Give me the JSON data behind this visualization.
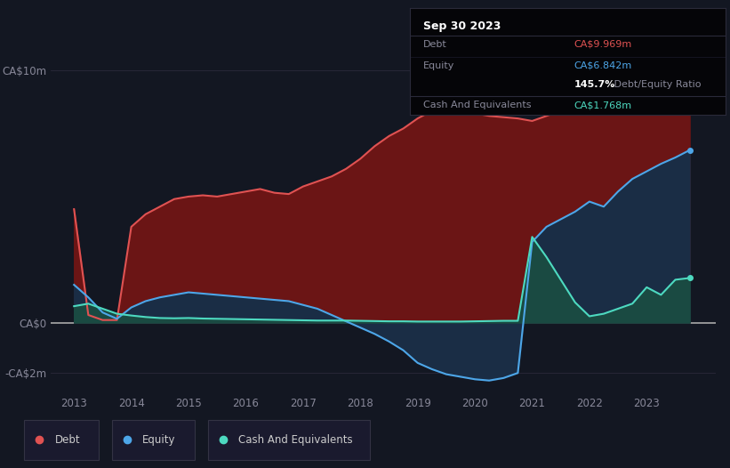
{
  "background_color": "#131722",
  "plot_bg_color": "#131722",
  "tooltip": {
    "date": "Sep 30 2023",
    "debt_label": "Debt",
    "debt_value": "CA$9.969m",
    "equity_label": "Equity",
    "equity_value": "CA$6.842m",
    "ratio_bold": "145.7%",
    "ratio_rest": " Debt/Equity Ratio",
    "cash_label": "Cash And Equivalents",
    "cash_value": "CA$1.768m"
  },
  "years": [
    2013.0,
    2013.25,
    2013.5,
    2013.75,
    2014.0,
    2014.25,
    2014.5,
    2014.75,
    2015.0,
    2015.25,
    2015.5,
    2015.75,
    2016.0,
    2016.25,
    2016.5,
    2016.75,
    2017.0,
    2017.25,
    2017.5,
    2017.75,
    2018.0,
    2018.25,
    2018.5,
    2018.75,
    2019.0,
    2019.25,
    2019.5,
    2019.75,
    2020.0,
    2020.25,
    2020.5,
    2020.75,
    2021.0,
    2021.25,
    2021.5,
    2021.75,
    2022.0,
    2022.25,
    2022.5,
    2022.75,
    2023.0,
    2023.25,
    2023.5,
    2023.75
  ],
  "debt": [
    4.5,
    0.3,
    0.1,
    0.1,
    3.8,
    4.3,
    4.6,
    4.9,
    5.0,
    5.05,
    5.0,
    5.1,
    5.2,
    5.3,
    5.15,
    5.1,
    5.4,
    5.6,
    5.8,
    6.1,
    6.5,
    7.0,
    7.4,
    7.7,
    8.1,
    8.4,
    8.6,
    8.5,
    8.3,
    8.2,
    8.15,
    8.1,
    8.0,
    8.2,
    8.4,
    8.7,
    8.9,
    8.7,
    8.85,
    9.1,
    9.3,
    9.55,
    9.75,
    9.969
  ],
  "equity": [
    1.5,
    1.0,
    0.4,
    0.15,
    0.6,
    0.85,
    1.0,
    1.1,
    1.2,
    1.15,
    1.1,
    1.05,
    1.0,
    0.95,
    0.9,
    0.85,
    0.7,
    0.55,
    0.3,
    0.05,
    -0.2,
    -0.45,
    -0.75,
    -1.1,
    -1.6,
    -1.85,
    -2.05,
    -2.15,
    -2.25,
    -2.3,
    -2.2,
    -2.0,
    3.2,
    3.8,
    4.1,
    4.4,
    4.8,
    4.6,
    5.2,
    5.7,
    6.0,
    6.3,
    6.55,
    6.842
  ],
  "cash": [
    0.65,
    0.75,
    0.55,
    0.35,
    0.28,
    0.22,
    0.18,
    0.17,
    0.18,
    0.16,
    0.15,
    0.14,
    0.13,
    0.12,
    0.11,
    0.1,
    0.09,
    0.08,
    0.08,
    0.08,
    0.07,
    0.06,
    0.05,
    0.05,
    0.04,
    0.04,
    0.04,
    0.04,
    0.05,
    0.06,
    0.07,
    0.07,
    3.4,
    2.6,
    1.7,
    0.8,
    0.25,
    0.35,
    0.55,
    0.75,
    1.4,
    1.1,
    1.7,
    1.768
  ],
  "debt_color": "#e05252",
  "equity_color": "#4da6e8",
  "cash_color": "#4dd9c0",
  "debt_fill_color": "#6b1515",
  "equity_fill_color": "#1a2d45",
  "cash_fill_color": "#1a4a42",
  "ytick_labels": [
    "CA$10m",
    "CA$0",
    "-CA$2m"
  ],
  "ytick_values": [
    10,
    0,
    -2
  ],
  "xlim": [
    2012.6,
    2024.2
  ],
  "ylim": [
    -2.8,
    11.5
  ],
  "grid_color": "#2a2a3a",
  "legend_debt": "Debt",
  "legend_equity": "Equity",
  "legend_cash": "Cash And Equivalents",
  "tooltip_bg": "#050508",
  "tooltip_border": "#2a2a3a",
  "tooltip_text_color": "#888899",
  "tooltip_title_color": "#ffffff",
  "tooltip_debt_color": "#e05252",
  "tooltip_equity_color": "#4da6e8",
  "tooltip_cash_color": "#4dd9c0",
  "tooltip_ratio_bold_color": "#ffffff"
}
